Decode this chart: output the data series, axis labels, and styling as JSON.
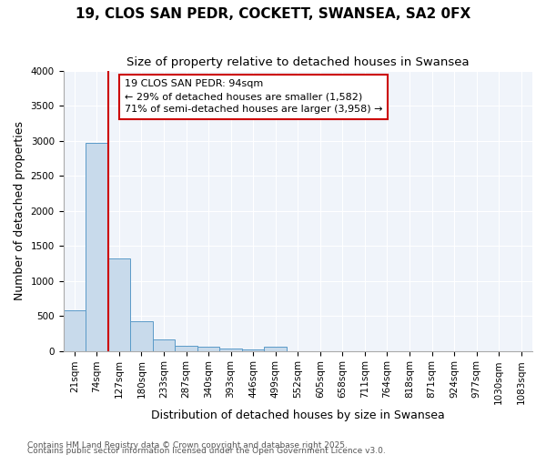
{
  "title1": "19, CLOS SAN PEDR, COCKETT, SWANSEA, SA2 0FX",
  "title2": "Size of property relative to detached houses in Swansea",
  "xlabel": "Distribution of detached houses by size in Swansea",
  "ylabel": "Number of detached properties",
  "categories": [
    "21sqm",
    "74sqm",
    "127sqm",
    "180sqm",
    "233sqm",
    "287sqm",
    "340sqm",
    "393sqm",
    "446sqm",
    "499sqm",
    "552sqm",
    "605sqm",
    "658sqm",
    "711sqm",
    "764sqm",
    "818sqm",
    "871sqm",
    "924sqm",
    "977sqm",
    "1030sqm",
    "1083sqm"
  ],
  "values": [
    580,
    2970,
    1320,
    420,
    160,
    75,
    55,
    35,
    20,
    55,
    0,
    0,
    0,
    0,
    0,
    0,
    0,
    0,
    0,
    0,
    0
  ],
  "bar_color": "#c8daeb",
  "bar_edge_color": "#5a9ac8",
  "vline_x": 1.5,
  "vline_color": "#cc0000",
  "annotation_line1": "19 CLOS SAN PEDR: 94sqm",
  "annotation_line2": "← 29% of detached houses are smaller (1,582)",
  "annotation_line3": "71% of semi-detached houses are larger (3,958) →",
  "annotation_box_color": "#ffffff",
  "annotation_box_edge": "#cc0000",
  "ylim": [
    0,
    4000
  ],
  "yticks": [
    0,
    500,
    1000,
    1500,
    2000,
    2500,
    3000,
    3500,
    4000
  ],
  "footnote1": "Contains HM Land Registry data © Crown copyright and database right 2025.",
  "footnote2": "Contains public sector information licensed under the Open Government Licence v3.0.",
  "bg_color": "#ffffff",
  "plot_bg_color": "#f0f4fa",
  "title_fontsize": 11,
  "subtitle_fontsize": 9.5,
  "tick_fontsize": 7.5,
  "label_fontsize": 9,
  "annot_fontsize": 8,
  "footnote_fontsize": 6.5
}
